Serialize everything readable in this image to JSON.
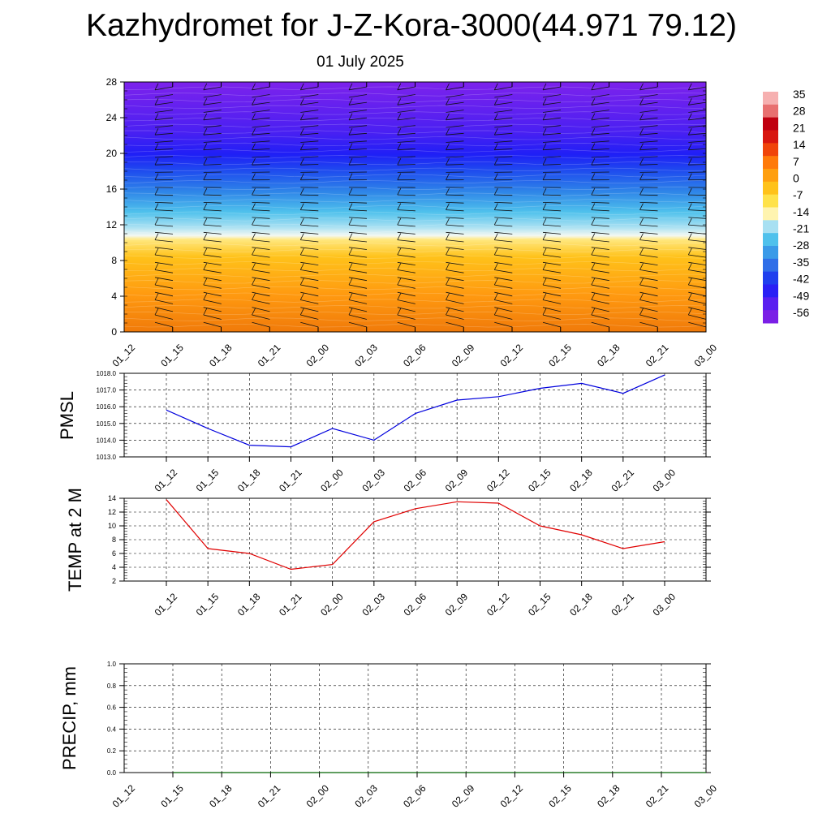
{
  "title": "Kazhydromet for J-Z-Kora-3000(44.971 79.12)",
  "subtitle": "01 July 2025",
  "colors": {
    "pmsl_line": "#0000dd",
    "temp_line": "#e00000",
    "precip_line": "#006400",
    "grid": "#000000"
  },
  "chart_data": [
    {
      "type": "heatmap",
      "title": "",
      "x_ticks": [
        "01_12",
        "01_15",
        "01_18",
        "01_21",
        "02_00",
        "02_03",
        "02_06",
        "02_09",
        "02_12",
        "02_15",
        "02_18",
        "02_21",
        "03_00"
      ],
      "y_ticks": [
        0,
        4,
        8,
        12,
        16,
        20,
        24,
        28
      ],
      "ylim": [
        0,
        28
      ],
      "colorbar_labels": [
        "35",
        "28",
        "21",
        "14",
        "7",
        "0",
        "-7",
        "-14",
        "-21",
        "-28",
        "-35",
        "-42",
        "-49",
        "-56"
      ],
      "colormap": [
        "#7b1fe6",
        "#5a1ff0",
        "#2a1ff5",
        "#1f3fee",
        "#2f6ee8",
        "#3a9ae8",
        "#4fc1ec",
        "#a8e0f2",
        "#fff4b0",
        "#ffe24a",
        "#ffc21a",
        "#ff9f0f",
        "#ff7a0a",
        "#f0440a",
        "#d8160f",
        "#c00010",
        "#e87070",
        "#f6b0b0"
      ],
      "overlay": "wind barbs"
    },
    {
      "type": "line",
      "ylabel": "PMSL",
      "x": [
        "01_12",
        "01_15",
        "01_18",
        "01_21",
        "02_00",
        "02_03",
        "02_06",
        "02_09",
        "02_12",
        "02_15",
        "02_18",
        "02_21",
        "03_00"
      ],
      "ylim": [
        1013.0,
        1018.0
      ],
      "y_ticks": [
        "1013.0",
        "1014.0",
        "1015.0",
        "1016.0",
        "1017.0",
        "1018.0"
      ],
      "series": [
        {
          "values": [
            1015.8,
            1014.7,
            1013.7,
            1013.6,
            1014.7,
            1014.0,
            1015.6,
            1016.4,
            1016.6,
            1017.1,
            1017.4,
            1016.8,
            1017.9
          ]
        }
      ],
      "grid": true
    },
    {
      "type": "line",
      "ylabel": "TEMP at 2 M",
      "x": [
        "01_12",
        "01_15",
        "01_18",
        "01_21",
        "02_00",
        "02_03",
        "02_06",
        "02_09",
        "02_12",
        "02_15",
        "02_18",
        "02_21",
        "03_00"
      ],
      "ylim": [
        2,
        14
      ],
      "y_ticks": [
        "2",
        "4",
        "6",
        "8",
        "10",
        "12",
        "14"
      ],
      "series": [
        {
          "values": [
            13.8,
            6.7,
            6.0,
            3.7,
            4.4,
            10.6,
            12.5,
            13.5,
            13.3,
            10.0,
            8.7,
            6.7,
            7.7
          ]
        }
      ],
      "grid": true
    },
    {
      "type": "line",
      "ylabel": "PRECIP, mm",
      "x": [
        "01_12",
        "01_15",
        "01_18",
        "01_21",
        "02_00",
        "02_03",
        "02_06",
        "02_09",
        "02_12",
        "02_15",
        "02_18",
        "02_21",
        "03_00"
      ],
      "ylim": [
        0.0,
        1.0
      ],
      "y_ticks": [
        "0.0",
        "0.2",
        "0.4",
        "0.6",
        "0.8",
        "1.0"
      ],
      "series": [
        {
          "values": [
            0,
            0,
            0,
            0,
            0,
            0,
            0,
            0,
            0,
            0,
            0,
            0,
            0
          ]
        }
      ],
      "grid": true
    }
  ]
}
